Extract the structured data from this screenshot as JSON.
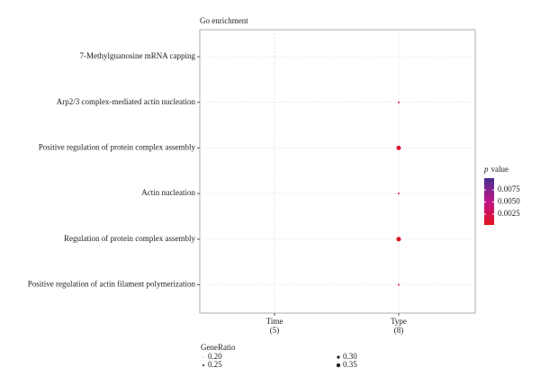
{
  "chart_data": {
    "type": "dot",
    "title": "Go enrichment",
    "categories": [
      "7-Methylguanosine mRNA capping",
      "Arp2/3 complex-mediated actin nucleation",
      "Positive regulation of protein complex assembly",
      "Actin nucleation",
      "Regulation of protein complex assembly",
      "Positive regulation of actin filament polymerization"
    ],
    "groups": [
      [
        "Time",
        "(5)"
      ],
      [
        "Type",
        "(8)"
      ]
    ],
    "gene_ratio": [
      [
        0.2,
        null
      ],
      [
        null,
        0.25
      ],
      [
        null,
        0.375
      ],
      [
        null,
        0.25
      ],
      [
        null,
        0.375
      ],
      [
        null,
        0.25
      ]
    ],
    "p_value": [
      [
        0.0012,
        null
      ],
      [
        null,
        0.0011
      ],
      [
        null,
        0.0009
      ],
      [
        null,
        0.0011
      ],
      [
        null,
        0.0009
      ],
      [
        null,
        0.0011
      ]
    ],
    "color_legend": {
      "title": [
        "p",
        "value"
      ],
      "clim": [
        0.0003,
        0.0099
      ],
      "ticks": [
        0.0075,
        {
          "value": 0.005,
          "label": "0.0050"
        },
        0.0025
      ],
      "colors": [
        "#e0131c",
        "#c0168a",
        "#45308f"
      ]
    },
    "size_legend": {
      "title": "GeneRatio",
      "values": [
        {
          "value": 0.2,
          "label": "0.20"
        },
        0.25,
        {
          "value": 0.3,
          "label": "0.30"
        },
        0.35
      ]
    },
    "grid": true
  }
}
